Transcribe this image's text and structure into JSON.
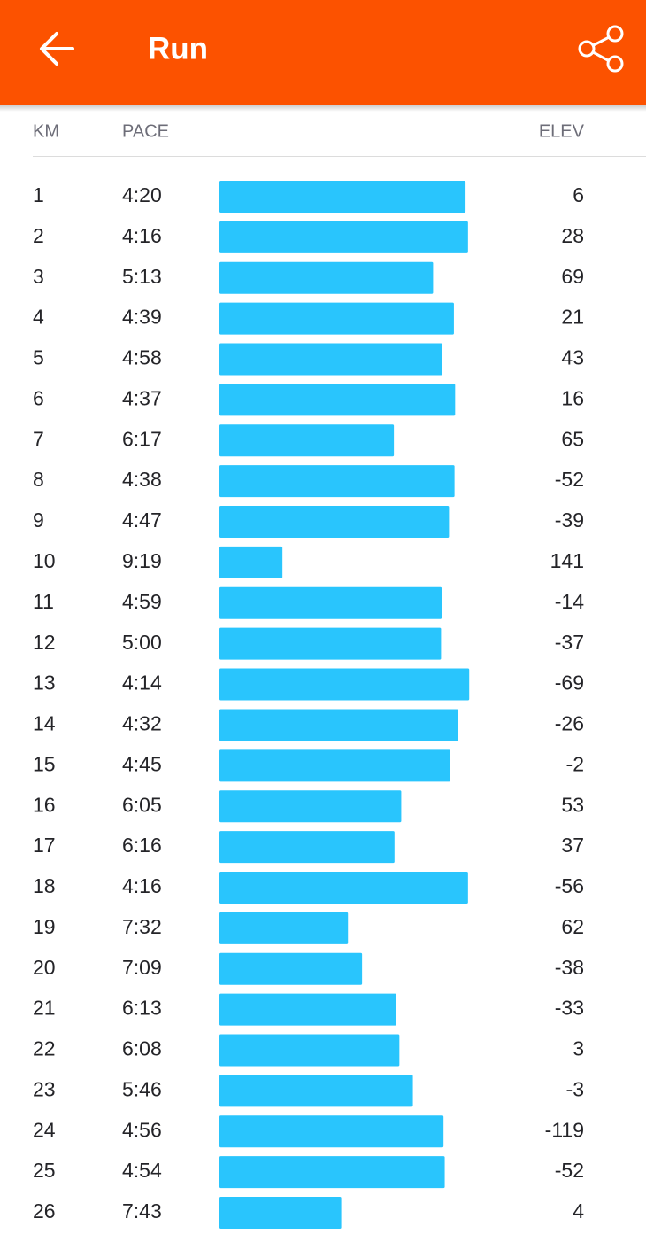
{
  "header": {
    "title": "Run"
  },
  "columns": {
    "km": "KM",
    "pace": "PACE",
    "elev": "ELEV"
  },
  "rows": [
    {
      "km": 1,
      "pace": "4:20",
      "elev": 6
    },
    {
      "km": 2,
      "pace": "4:16",
      "elev": 28
    },
    {
      "km": 3,
      "pace": "5:13",
      "elev": 69
    },
    {
      "km": 4,
      "pace": "4:39",
      "elev": 21
    },
    {
      "km": 5,
      "pace": "4:58",
      "elev": 43
    },
    {
      "km": 6,
      "pace": "4:37",
      "elev": 16
    },
    {
      "km": 7,
      "pace": "6:17",
      "elev": 65
    },
    {
      "km": 8,
      "pace": "4:38",
      "elev": -52
    },
    {
      "km": 9,
      "pace": "4:47",
      "elev": -39
    },
    {
      "km": 10,
      "pace": "9:19",
      "elev": 141
    },
    {
      "km": 11,
      "pace": "4:59",
      "elev": -14
    },
    {
      "km": 12,
      "pace": "5:00",
      "elev": -37
    },
    {
      "km": 13,
      "pace": "4:14",
      "elev": -69
    },
    {
      "km": 14,
      "pace": "4:32",
      "elev": -26
    },
    {
      "km": 15,
      "pace": "4:45",
      "elev": -2
    },
    {
      "km": 16,
      "pace": "6:05",
      "elev": 53
    },
    {
      "km": 17,
      "pace": "6:16",
      "elev": 37
    },
    {
      "km": 18,
      "pace": "4:16",
      "elev": -56
    },
    {
      "km": 19,
      "pace": "7:32",
      "elev": 62
    },
    {
      "km": 20,
      "pace": "7:09",
      "elev": -38
    },
    {
      "km": 21,
      "pace": "6:13",
      "elev": -33
    },
    {
      "km": 22,
      "pace": "6:08",
      "elev": 3
    },
    {
      "km": 23,
      "pace": "5:46",
      "elev": -3
    },
    {
      "km": 24,
      "pace": "4:56",
      "elev": -119
    },
    {
      "km": 25,
      "pace": "4:54",
      "elev": -52
    },
    {
      "km": 26,
      "pace": "7:43",
      "elev": 4
    }
  ]
}
